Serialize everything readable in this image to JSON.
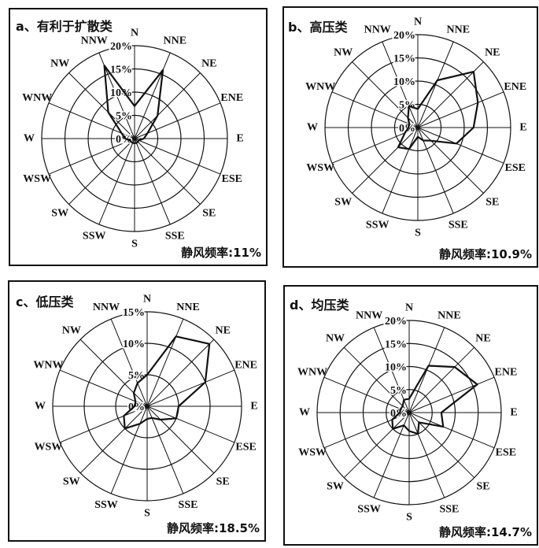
{
  "chart_data": [
    {
      "type": "line",
      "coordinate_system": "polar",
      "title": "a、有利于扩散类",
      "categories": [
        "N",
        "NNE",
        "NE",
        "ENE",
        "E",
        "ESE",
        "SE",
        "SSE",
        "S",
        "SSW",
        "SW",
        "WSW",
        "W",
        "WNW",
        "NW",
        "NNW"
      ],
      "values": [
        7,
        16,
        7,
        3,
        2,
        1,
        1,
        1,
        1,
        1,
        1,
        1,
        2,
        3,
        8,
        17
      ],
      "rlim": [
        0,
        20
      ],
      "r_tick_labels": [
        "0%",
        "5%",
        "10%",
        "15%",
        "20%"
      ],
      "annotation": "静风频率:11%",
      "grid": true
    },
    {
      "type": "line",
      "coordinate_system": "polar",
      "title": "b、高压类",
      "categories": [
        "N",
        "NNE",
        "NE",
        "ENE",
        "E",
        "ESE",
        "SE",
        "SSE",
        "S",
        "SSW",
        "SW",
        "WSW",
        "W",
        "WNW",
        "NW",
        "NNW"
      ],
      "values": [
        4,
        11,
        17,
        14,
        12,
        9,
        4,
        3,
        2,
        5,
        6,
        3,
        2,
        2,
        3,
        5
      ],
      "rlim": [
        0,
        20
      ],
      "r_tick_labels": [
        "0%",
        "5%",
        "10%",
        "15%",
        "20%"
      ],
      "annotation": "静风频率:10.9%",
      "grid": true
    },
    {
      "type": "line",
      "coordinate_system": "polar",
      "title": "c、低压类",
      "categories": [
        "N",
        "NNE",
        "NE",
        "ENE",
        "E",
        "ESE",
        "SE",
        "SSE",
        "S",
        "SSW",
        "SW",
        "WSW",
        "W",
        "WNW",
        "NW",
        "NNW"
      ],
      "values": [
        5,
        12,
        14,
        10,
        5,
        5,
        3,
        2,
        2,
        3,
        5,
        4,
        2,
        2,
        3,
        4
      ],
      "rlim": [
        0,
        15
      ],
      "r_tick_labels": [
        "0%",
        "5%",
        "10%",
        "15%"
      ],
      "annotation": "静风频率:18.5%",
      "grid": true
    },
    {
      "type": "line",
      "coordinate_system": "polar",
      "title": "d、均压类",
      "categories": [
        "N",
        "NNE",
        "NE",
        "ENE",
        "E",
        "ESE",
        "SE",
        "SSE",
        "S",
        "SSW",
        "SW",
        "WSW",
        "W",
        "WNW",
        "NW",
        "NNW"
      ],
      "values": [
        3,
        11,
        14,
        16,
        7,
        8,
        3,
        5,
        4,
        3,
        5,
        4,
        2,
        2,
        2,
        3
      ],
      "rlim": [
        0,
        20
      ],
      "r_tick_labels": [
        "0%",
        "5%",
        "10%",
        "15%",
        "20%"
      ],
      "annotation": "静风频率:14.7%",
      "grid": true
    }
  ]
}
